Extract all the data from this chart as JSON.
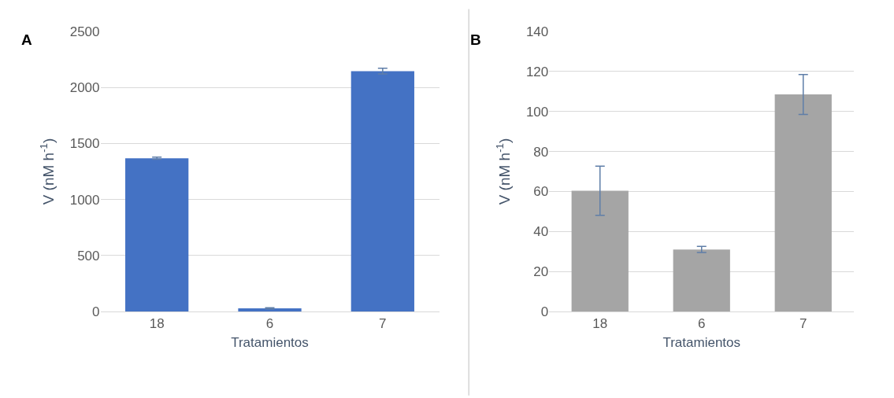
{
  "chart_data": [
    {
      "type": "bar",
      "title": "A",
      "xlabel": "Tratamientos",
      "ylabel": "V (nM h$^{-1}$)",
      "categories": [
        "18",
        "6",
        "7"
      ],
      "values": [
        1368,
        28,
        2146
      ],
      "errors": [
        10,
        5,
        25
      ],
      "color": "#4472c4",
      "ylim": [
        0,
        2500
      ],
      "yticks": [
        0,
        500,
        1000,
        1500,
        2000,
        2500
      ],
      "grid": "y"
    },
    {
      "type": "bar",
      "title": "B",
      "xlabel": "Tratamientos",
      "ylabel": "V (nM h$^{-1}$)",
      "categories": [
        "18",
        "6",
        "7"
      ],
      "values": [
        60.4,
        31,
        108.5
      ],
      "errors": [
        12.3,
        1.5,
        10
      ],
      "color": "#a5a5a5",
      "ylim": [
        0,
        140
      ],
      "yticks": [
        0,
        20,
        40,
        60,
        80,
        100,
        120,
        140
      ],
      "grid": "y"
    }
  ]
}
